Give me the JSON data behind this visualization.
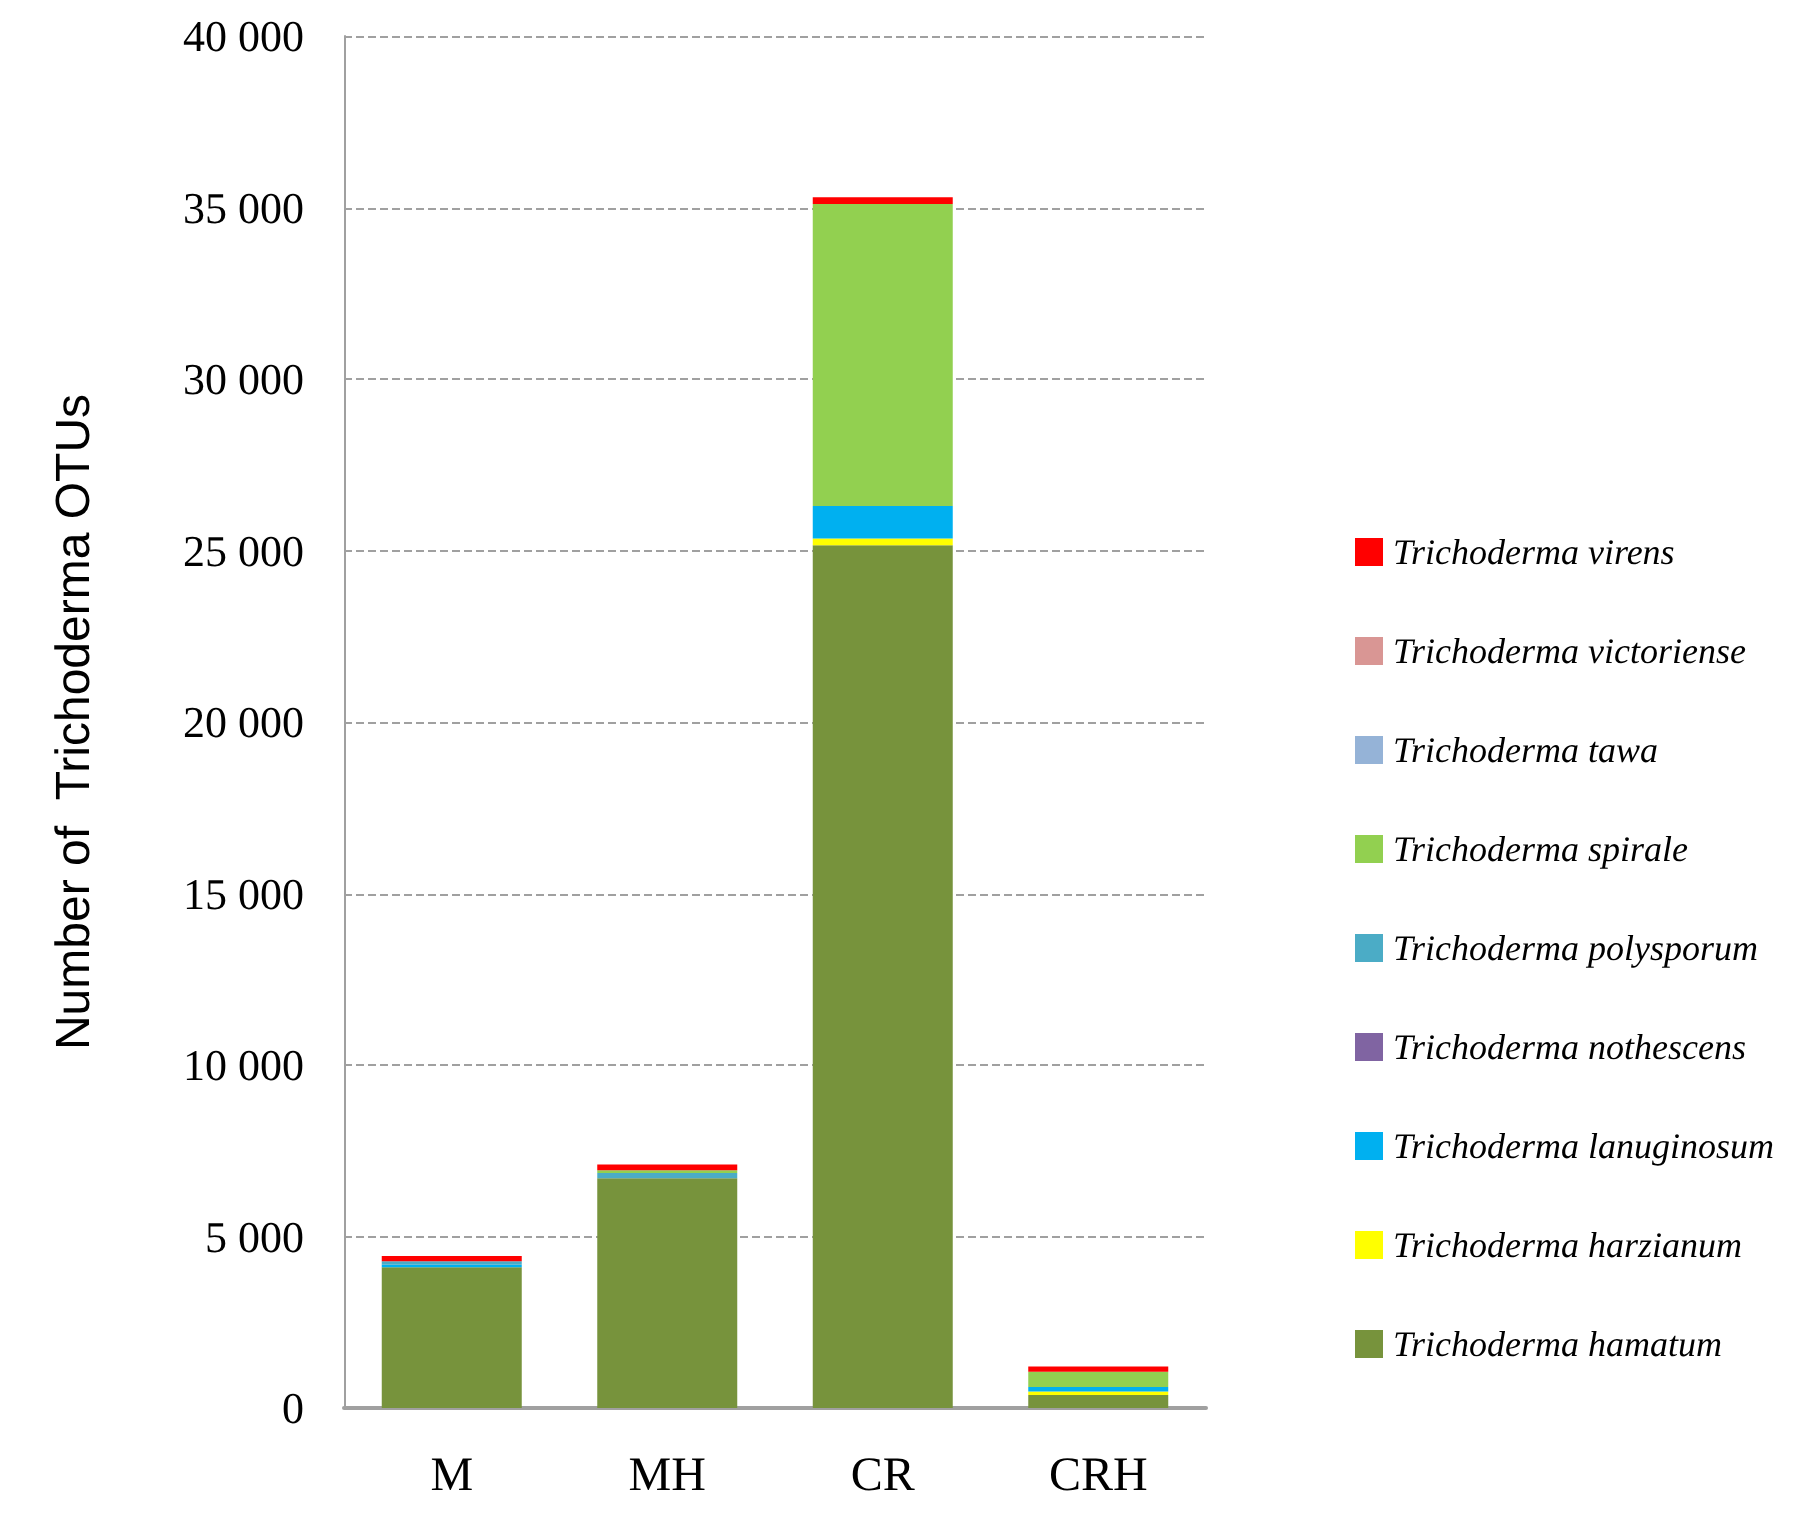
{
  "chart_data": {
    "type": "bar",
    "stacked": true,
    "ylabel": "Number of  Trichoderma OTUs",
    "categories": [
      "M",
      "MH",
      "CR",
      "CRH"
    ],
    "series": [
      {
        "name": "Trichoderma hamatum",
        "color": "#77933c",
        "values": [
          4100,
          6700,
          25150,
          380
        ]
      },
      {
        "name": "Trichoderma harzianum",
        "color": "#ffff00",
        "values": [
          0,
          0,
          200,
          100
        ]
      },
      {
        "name": "Trichoderma lanuginosum",
        "color": "#00b0f0",
        "values": [
          80,
          0,
          950,
          130
        ]
      },
      {
        "name": "Trichoderma nothescens",
        "color": "#8064a2",
        "values": [
          0,
          0,
          0,
          0
        ]
      },
      {
        "name": "Trichoderma polysporum",
        "color": "#4bacc6",
        "values": [
          100,
          150,
          0,
          0
        ]
      },
      {
        "name": "Trichoderma spirale",
        "color": "#92d050",
        "values": [
          0,
          80,
          8800,
          450
        ]
      },
      {
        "name": "Trichoderma tawa",
        "color": "#95b3d7",
        "values": [
          0,
          0,
          0,
          0
        ]
      },
      {
        "name": "Trichoderma victoriense",
        "color": "#d99694",
        "values": [
          0,
          0,
          0,
          0
        ]
      },
      {
        "name": "Trichoderma virens",
        "color": "#ff0000",
        "values": [
          150,
          170,
          200,
          150
        ]
      }
    ],
    "ylim": [
      0,
      40000
    ],
    "yticks": [
      {
        "value": 0,
        "label": "0"
      },
      {
        "value": 5000,
        "label": "5 000"
      },
      {
        "value": 10000,
        "label": "10 000"
      },
      {
        "value": 15000,
        "label": "15 000"
      },
      {
        "value": 20000,
        "label": "20 000"
      },
      {
        "value": 25000,
        "label": "25 000"
      },
      {
        "value": 30000,
        "label": "30 000"
      },
      {
        "value": 35000,
        "label": "35 000"
      },
      {
        "value": 40000,
        "label": "40 000"
      }
    ],
    "grid": "y",
    "legend": "right"
  }
}
